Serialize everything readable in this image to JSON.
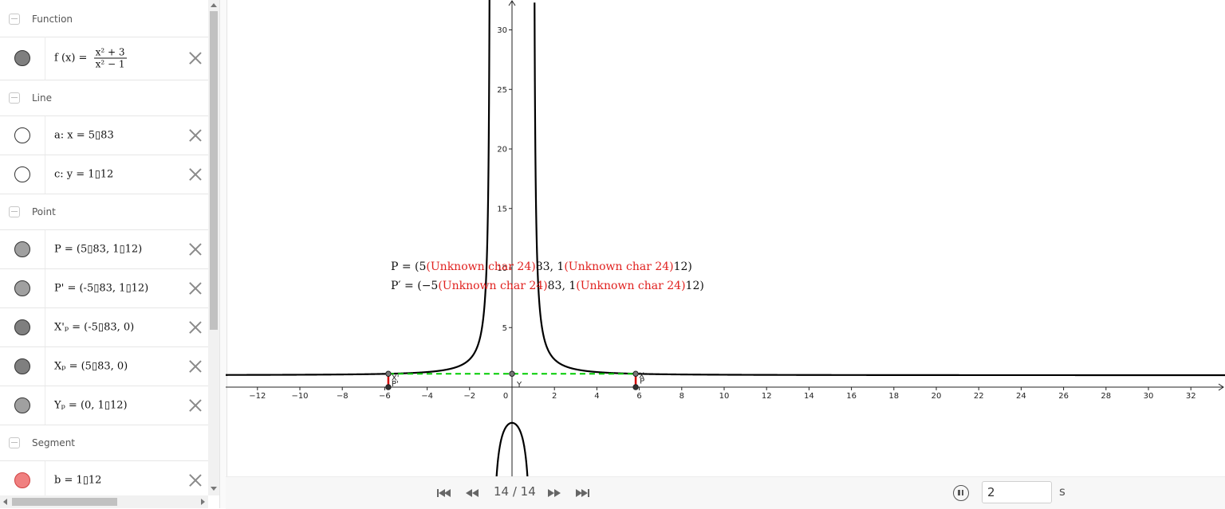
{
  "algebra": {
    "categories": {
      "function": "Function",
      "line": "Line",
      "point": "Point",
      "segment": "Segment"
    },
    "function_row": {
      "prefix": "f (x) =",
      "numerator": "x² + 3",
      "denominator": "x² − 1",
      "color": "#7f7f7f"
    },
    "line_rows": [
      {
        "expr": "a: x = 5▯83",
        "color": "#ffffff"
      },
      {
        "expr": "c: y = 1▯12",
        "color": "#ffffff"
      }
    ],
    "point_rows": [
      {
        "expr": "P = (5▯83, 1▯12)",
        "color": "#a0a0a0"
      },
      {
        "expr": "P' = (-5▯83, 1▯12)",
        "color": "#a0a0a0"
      },
      {
        "expr": "X'ₚ = (-5▯83, 0)",
        "color": "#7f7f7f"
      },
      {
        "expr": "Xₚ = (5▯83, 0)",
        "color": "#7f7f7f"
      },
      {
        "expr": "Yₚ = (0, 1▯12)",
        "color": "#a0a0a0"
      }
    ],
    "segment_rows": [
      {
        "expr": "b = 1▯12",
        "color": "#f08080"
      }
    ]
  },
  "graphics": {
    "x_ticks": [
      "-12",
      "-10",
      "-8",
      "-6",
      "-4",
      "-2",
      "0",
      "2",
      "4",
      "6",
      "8",
      "10",
      "12",
      "14",
      "16",
      "18",
      "20",
      "22",
      "24",
      "26",
      "28",
      "30",
      "32"
    ],
    "y_ticks": [
      "5",
      "10",
      "15",
      "20",
      "25",
      "30"
    ],
    "point_labels": {
      "p": "P",
      "p_prime": "P'",
      "x_p": "X",
      "x_p_prime": "X'",
      "y_p": "Y"
    },
    "text_P": {
      "lead": "P  =  (5",
      "err1": "(Unknown char 24)",
      "mid": "83, 1",
      "err2": "(Unknown char 24)",
      "tail": "12)"
    },
    "text_P_prime": {
      "lead": "P′  =  (−5",
      "err1": "(Unknown char 24)",
      "mid": "83, 1",
      "err2": "(Unknown char 24)",
      "tail": "12)"
    },
    "curve_color": "#000000",
    "dashed_color": "#00cc00",
    "segment_color": "#d40000"
  },
  "playback": {
    "page_counter": "14 / 14",
    "speed_value": "2",
    "speed_unit": "s"
  }
}
